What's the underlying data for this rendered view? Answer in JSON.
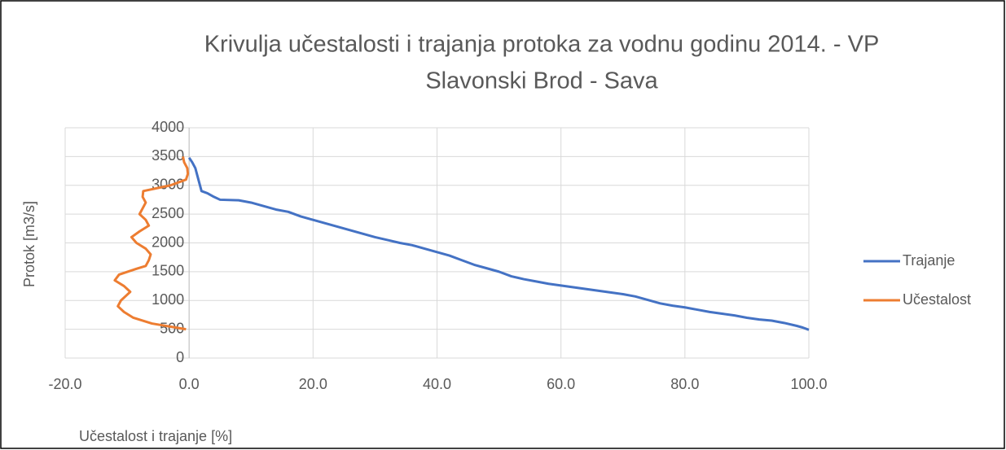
{
  "chart_data": {
    "type": "line",
    "title": [
      "Krivulja učestalosti i trajanja protoka za vodnu godinu 2014. - VP",
      "Slavonski Brod - Sava"
    ],
    "x_label": "Učestalost i trajanje [%]",
    "y_label": "Protok [m3/s]",
    "xlim": [
      -20,
      100
    ],
    "ylim": [
      0,
      4000
    ],
    "xticks": [
      {
        "value": -20,
        "label": "-20.0"
      },
      {
        "value": 0,
        "label": "0.0"
      },
      {
        "value": 20,
        "label": "20.0"
      },
      {
        "value": 40,
        "label": "40.0"
      },
      {
        "value": 60,
        "label": "60.0"
      },
      {
        "value": 80,
        "label": "80.0"
      },
      {
        "value": 100,
        "label": "100.0"
      }
    ],
    "yticks": [
      0,
      500,
      1000,
      1500,
      2000,
      2500,
      3000,
      3500,
      4000
    ],
    "grid": true,
    "legend": "right",
    "series": [
      {
        "name": "Trajanje",
        "color": "#4472c4",
        "x": [
          0,
          0.5,
          1,
          1.5,
          2,
          3,
          4,
          5,
          8,
          10,
          12,
          14,
          16,
          18,
          20,
          22,
          24,
          26,
          28,
          30,
          32,
          34,
          36,
          38,
          40,
          42,
          44,
          46,
          48,
          50,
          52,
          54,
          56,
          58,
          60,
          62,
          64,
          66,
          68,
          70,
          72,
          74,
          76,
          78,
          80,
          82,
          84,
          86,
          88,
          90,
          92,
          94,
          96,
          98,
          99,
          100
        ],
        "values": [
          3480,
          3400,
          3300,
          3100,
          2900,
          2860,
          2800,
          2750,
          2740,
          2700,
          2640,
          2580,
          2540,
          2460,
          2400,
          2340,
          2280,
          2220,
          2160,
          2100,
          2050,
          2000,
          1960,
          1900,
          1840,
          1780,
          1700,
          1620,
          1560,
          1500,
          1420,
          1370,
          1330,
          1290,
          1260,
          1230,
          1200,
          1170,
          1140,
          1110,
          1070,
          1010,
          950,
          910,
          880,
          840,
          800,
          770,
          740,
          700,
          670,
          650,
          610,
          560,
          530,
          490
        ]
      },
      {
        "name": "Učestalost",
        "color": "#ed7d31",
        "x": [
          -0.5,
          -6,
          -9,
          -10.5,
          -11.5,
          -11,
          -10,
          -9.5,
          -10.5,
          -12,
          -11.3,
          -8.5,
          -7,
          -6.5,
          -6.2,
          -7,
          -8.5,
          -9.3,
          -8,
          -6.5,
          -7,
          -8,
          -7.5,
          -7,
          -7.5,
          -7.4,
          -3,
          -0.5,
          -0.2,
          -0.3,
          -0.8,
          -1
        ],
        "values": [
          500,
          600,
          700,
          800,
          900,
          1000,
          1100,
          1150,
          1250,
          1350,
          1450,
          1550,
          1600,
          1700,
          1800,
          1900,
          2000,
          2100,
          2200,
          2300,
          2400,
          2500,
          2600,
          2700,
          2800,
          2900,
          3000,
          3100,
          3200,
          3300,
          3400,
          3500
        ]
      }
    ]
  }
}
